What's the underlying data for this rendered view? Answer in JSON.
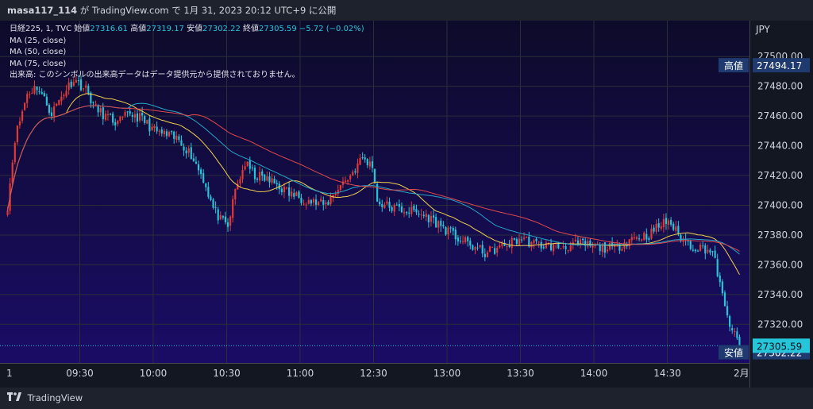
{
  "header": {
    "username": "masa117_114",
    "published_prefix": "が TradingView.com で",
    "published_date": "1月 31, 2023 20:12 UTC+9",
    "published_suffix": "に公開"
  },
  "legend": {
    "symbol": "日経225, 1, TVC",
    "open_label": "始値",
    "open_value": "27316.61",
    "high_label": "高値",
    "high_value": "27319.17",
    "low_label": "安値",
    "low_value": "27302.22",
    "close_label": "終値",
    "close_value": "27305.59",
    "change": "−5.72 (−0.02%)",
    "ma_25": "MA (25, close)",
    "ma_50": "MA (50, close)",
    "ma_75": "MA (75, close)",
    "volume_note": "出来高: このシンボルの出来高データはデータ提供元から提供されておりません。"
  },
  "footer": {
    "brand": "TradingView"
  },
  "chart_data": {
    "type": "candlestick",
    "currency": "JPY",
    "y_ticks": [
      27320,
      27340,
      27360,
      27380,
      27400,
      27420,
      27440,
      27460,
      27480,
      27500
    ],
    "ylim": [
      27294,
      27522
    ],
    "x_ticks": [
      "9:30",
      "10:00",
      "10:30",
      "11:00",
      "12:30",
      "13:00",
      "13:30",
      "14:00",
      "14:30"
    ],
    "x_tick_labels": [
      "09:30",
      "10:00",
      "10:30",
      "11:00",
      "12:30",
      "13:00",
      "13:30",
      "14:00",
      "14:30"
    ],
    "x_left_edge_label": "1",
    "x_right_label": "2月",
    "session_start": "9:00",
    "session_end": "15:00",
    "lunch_break": [
      "11:30",
      "12:30"
    ],
    "key": [
      [
        "9:00",
        27400
      ],
      [
        "9:03",
        27445
      ],
      [
        "9:08",
        27475
      ],
      [
        "9:12",
        27480
      ],
      [
        "9:18",
        27462
      ],
      [
        "9:23",
        27476
      ],
      [
        "9:27",
        27485
      ],
      [
        "9:32",
        27478
      ],
      [
        "9:36",
        27465
      ],
      [
        "9:40",
        27460
      ],
      [
        "9:45",
        27455
      ],
      [
        "9:50",
        27462
      ],
      [
        "9:55",
        27458
      ],
      [
        "10:00",
        27450
      ],
      [
        "10:05",
        27447
      ],
      [
        "10:10",
        27444
      ],
      [
        "10:15",
        27434
      ],
      [
        "10:20",
        27418
      ],
      [
        "10:24",
        27398
      ],
      [
        "10:27",
        27390
      ],
      [
        "10:30",
        27385
      ],
      [
        "10:33",
        27410
      ],
      [
        "10:37",
        27428
      ],
      [
        "10:41",
        27420
      ],
      [
        "10:45",
        27418
      ],
      [
        "10:50",
        27414
      ],
      [
        "10:55",
        27408
      ],
      [
        "11:00",
        27405
      ],
      [
        "11:05",
        27402
      ],
      [
        "11:10",
        27400
      ],
      [
        "11:15",
        27412
      ],
      [
        "11:20",
        27420
      ],
      [
        "11:25",
        27432
      ],
      [
        "11:29",
        27426
      ],
      [
        "12:30",
        27418
      ],
      [
        "12:31",
        27402
      ],
      [
        "12:38",
        27398
      ],
      [
        "12:45",
        27396
      ],
      [
        "12:52",
        27392
      ],
      [
        "12:58",
        27385
      ],
      [
        "13:02",
        27380
      ],
      [
        "13:08",
        27374
      ],
      [
        "13:15",
        27368
      ],
      [
        "13:22",
        27372
      ],
      [
        "13:30",
        27378
      ],
      [
        "13:35",
        27374
      ],
      [
        "13:45",
        27372
      ],
      [
        "13:55",
        27374
      ],
      [
        "14:00",
        27372
      ],
      [
        "14:08",
        27371
      ],
      [
        "14:15",
        27378
      ],
      [
        "14:22",
        27380
      ],
      [
        "14:26",
        27386
      ],
      [
        "14:30",
        27390
      ],
      [
        "14:34",
        27380
      ],
      [
        "14:40",
        27372
      ],
      [
        "14:45",
        27371
      ],
      [
        "14:48",
        27368
      ],
      [
        "14:50",
        27355
      ],
      [
        "14:53",
        27330
      ],
      [
        "14:57",
        27312
      ],
      [
        "15:00",
        27305
      ]
    ],
    "ma": [
      {
        "name": "MA (25, close)",
        "color": "#f2d04e",
        "period": 25
      },
      {
        "name": "MA (50, close)",
        "color": "#26a6c9",
        "period": 50
      },
      {
        "name": "MA (75, close)",
        "color": "#e0484b",
        "period": 75
      }
    ],
    "marker_high": {
      "label": "高値",
      "value": "27494.17"
    },
    "marker_low": {
      "label": "安値",
      "value": "27302.22"
    },
    "last_price": "27305.59",
    "last_price_num": 27305.59,
    "colors": {
      "up": "#e53935",
      "down": "#26c6da",
      "bg_top": "#0d0b2a",
      "bg_bottom": "#1a0c66",
      "grid": "#2a2e39"
    }
  }
}
